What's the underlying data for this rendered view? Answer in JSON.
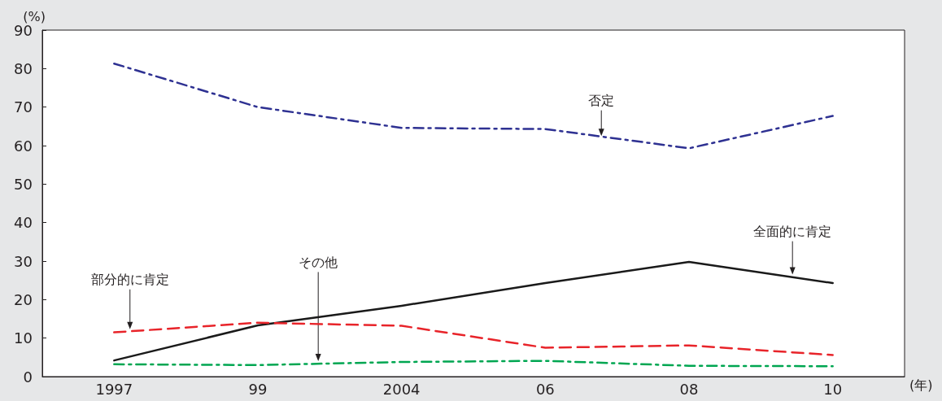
{
  "chart_data": {
    "type": "line",
    "xlabel": "(年)",
    "ylabel": "(%)",
    "categories": [
      "1997",
      "99",
      "2004",
      "06",
      "08",
      "10"
    ],
    "ylim": [
      0,
      90
    ],
    "yticks": [
      0,
      10,
      20,
      30,
      40,
      50,
      60,
      70,
      80,
      90
    ],
    "grid": false,
    "legend": false,
    "marker": "none",
    "series": [
      {
        "name": "否定",
        "color": "#2e3192",
        "line_style": "dashdot",
        "values": [
          81.3,
          70,
          64.6,
          64.3,
          59.3,
          67.7
        ]
      },
      {
        "name": "全面的に肯定",
        "color": "#1a1a1a",
        "line_style": "solid",
        "values": [
          4.2,
          13.3,
          18.4,
          24.3,
          29.8,
          24.3
        ]
      },
      {
        "name": "部分的に肯定",
        "color": "#e8242a",
        "line_style": "dashed",
        "values": [
          11.5,
          14,
          13.2,
          7.5,
          8.1,
          5.6
        ]
      },
      {
        "name": "その他",
        "color": "#00a651",
        "line_style": "dashdot",
        "values": [
          3.2,
          3,
          3.8,
          4.1,
          2.8,
          2.7
        ]
      }
    ]
  }
}
